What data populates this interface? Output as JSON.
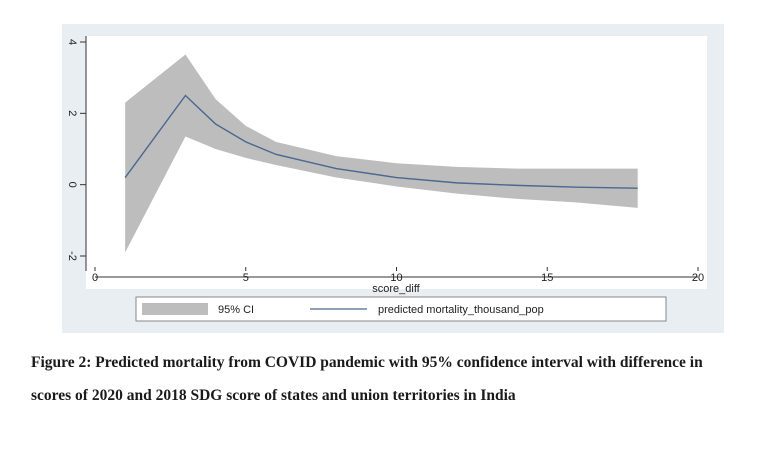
{
  "chart_data": {
    "type": "line",
    "title": "",
    "xlabel": "score_diff",
    "ylabel": "",
    "xlim": [
      0,
      20
    ],
    "ylim": [
      -2,
      4
    ],
    "x_ticks": [
      0,
      5,
      10,
      15,
      20
    ],
    "y_ticks": [
      -2,
      0,
      2,
      4
    ],
    "grid": false,
    "legend_position": "bottom",
    "series": [
      {
        "name": "predicted mortality_thousand_pop",
        "type": "line",
        "color": "#4a6890",
        "x": [
          1,
          3,
          4,
          5,
          6,
          8,
          10,
          12,
          14,
          16,
          18
        ],
        "y": [
          0.2,
          2.5,
          1.7,
          1.2,
          0.85,
          0.45,
          0.2,
          0.05,
          -0.02,
          -0.07,
          -0.1
        ]
      },
      {
        "name": "95% CI",
        "type": "band",
        "color": "#bdbdbd",
        "x": [
          1,
          3,
          4,
          5,
          6,
          8,
          10,
          12,
          14,
          16,
          18
        ],
        "lower": [
          -1.9,
          1.35,
          1.0,
          0.75,
          0.55,
          0.2,
          -0.05,
          -0.25,
          -0.4,
          -0.5,
          -0.65
        ],
        "upper": [
          2.3,
          3.65,
          2.4,
          1.65,
          1.2,
          0.8,
          0.6,
          0.5,
          0.45,
          0.45,
          0.45
        ]
      }
    ]
  },
  "caption": {
    "text": "Figure 2: Predicted mortality from COVID pandemic with 95% confidence interval with difference in scores of 2020 and 2018 SDG score of states and union territories in India"
  },
  "colors": {
    "panel_background": "#e9eef3",
    "plot_background": "#ffffff",
    "ci_band": "#bdbdbd",
    "line": "#4a6890"
  }
}
